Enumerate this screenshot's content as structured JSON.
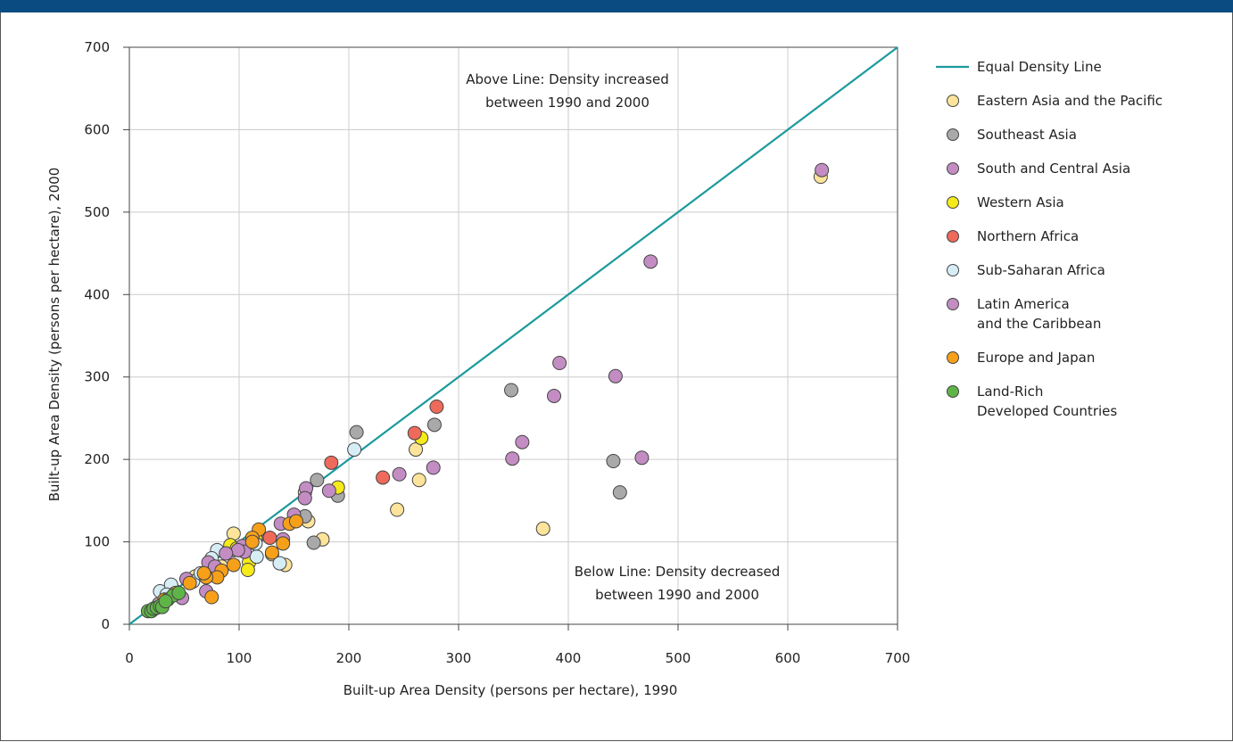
{
  "chart_data": {
    "type": "scatter",
    "xlabel": "Built-up Area Density (persons per hectare), 1990",
    "ylabel": "Built-up Area Density (persons per hectare), 2000",
    "xlim": [
      0,
      700
    ],
    "ylim": [
      0,
      700
    ],
    "x_ticks": [
      "0",
      "100",
      "200",
      "300",
      "400",
      "500",
      "600",
      "700"
    ],
    "y_ticks": [
      "0",
      "100",
      "200",
      "300",
      "400",
      "500",
      "600",
      "700"
    ],
    "grid": true,
    "legend_position": "right",
    "annotations": {
      "above": [
        "Above Line: Density increased",
        "between 1990 and 2000"
      ],
      "below": [
        "Below Line: Density decreased",
        "between 1990 and 2000"
      ]
    },
    "reference_line": {
      "name": "Equal Density Line",
      "color": "#1b9a9c",
      "x": [
        0,
        700
      ],
      "y": [
        0,
        700
      ]
    },
    "legend": [
      {
        "label": "Equal Density Line",
        "kind": "line",
        "color": "#1b9a9c"
      },
      {
        "label": [
          "Eastern Asia and the Pacific"
        ],
        "kind": "point",
        "color": "#fde49a"
      },
      {
        "label": [
          "Southeast Asia"
        ],
        "kind": "point",
        "color": "#a9a9a9"
      },
      {
        "label": [
          "South and Central Asia"
        ],
        "kind": "point",
        "color": "#c38dc3"
      },
      {
        "label": [
          "Western Asia"
        ],
        "kind": "point",
        "color": "#f5ea1a"
      },
      {
        "label": [
          "Northern Africa"
        ],
        "kind": "point",
        "color": "#ee6a5a"
      },
      {
        "label": [
          "Sub-Saharan Africa"
        ],
        "kind": "point",
        "color": "#d6edf6"
      },
      {
        "label": [
          "Latin America",
          "and the Caribbean"
        ],
        "kind": "point",
        "color": "#c38dc3"
      },
      {
        "label": [
          "Europe and Japan"
        ],
        "kind": "point",
        "color": "#f6a01a"
      },
      {
        "label": [
          "Land-Rich",
          "Developed Countries"
        ],
        "kind": "point",
        "color": "#5fb447"
      }
    ],
    "series": [
      {
        "name": "Eastern Asia and the Pacific",
        "color": "#fde49a",
        "points": [
          [
            95,
            110
          ],
          [
            163,
            125
          ],
          [
            176,
            103
          ],
          [
            142,
            72
          ],
          [
            244,
            139
          ],
          [
            264,
            175
          ],
          [
            261,
            212
          ],
          [
            377,
            116
          ],
          [
            630,
            543
          ],
          [
            130,
            85
          ],
          [
            160,
            160
          ],
          [
            84,
            70
          ],
          [
            60,
            58
          ],
          [
            42,
            40
          ]
        ]
      },
      {
        "name": "Southeast Asia",
        "color": "#a9a9a9",
        "points": [
          [
            207,
            233
          ],
          [
            278,
            242
          ],
          [
            190,
            156
          ],
          [
            171,
            175
          ],
          [
            168,
            99
          ],
          [
            348,
            284
          ],
          [
            441,
            198
          ],
          [
            447,
            160
          ],
          [
            160,
            131
          ],
          [
            95,
            90
          ],
          [
            22,
            18
          ],
          [
            27,
            25
          ]
        ]
      },
      {
        "name": "South and Central Asia",
        "color": "#c38dc3",
        "points": [
          [
            631,
            551
          ],
          [
            475,
            440
          ],
          [
            392,
            317
          ],
          [
            443,
            301
          ],
          [
            387,
            277
          ],
          [
            358,
            221
          ],
          [
            349,
            201
          ],
          [
            277,
            190
          ],
          [
            246,
            182
          ],
          [
            161,
            165
          ],
          [
            150,
            133
          ],
          [
            140,
            103
          ],
          [
            118,
            108
          ]
        ]
      },
      {
        "name": "Western Asia",
        "color": "#f5ea1a",
        "points": [
          [
            266,
            226
          ],
          [
            190,
            166
          ],
          [
            109,
            75
          ],
          [
            108,
            66
          ],
          [
            92,
            96
          ],
          [
            98,
            92
          ],
          [
            115,
            104
          ]
        ]
      },
      {
        "name": "Northern Africa",
        "color": "#ee6a5a",
        "points": [
          [
            280,
            264
          ],
          [
            260,
            232
          ],
          [
            184,
            196
          ],
          [
            231,
            178
          ],
          [
            128,
            105
          ]
        ]
      },
      {
        "name": "Sub-Saharan Africa",
        "color": "#d6edf6",
        "points": [
          [
            205,
            212
          ],
          [
            137,
            74
          ],
          [
            116,
            82
          ],
          [
            80,
            90
          ],
          [
            75,
            80
          ],
          [
            102,
            93
          ],
          [
            28,
            40
          ],
          [
            38,
            48
          ],
          [
            58,
            52
          ],
          [
            65,
            62
          ],
          [
            34,
            36
          ],
          [
            115,
            98
          ]
        ]
      },
      {
        "name": "Latin America and the Caribbean",
        "color": "#c38dc3",
        "points": [
          [
            467,
            202
          ],
          [
            182,
            162
          ],
          [
            160,
            153
          ],
          [
            138,
            122
          ],
          [
            103,
            95
          ],
          [
            105,
            88
          ],
          [
            99,
            90
          ],
          [
            72,
            75
          ],
          [
            70,
            40
          ],
          [
            48,
            32
          ],
          [
            52,
            55
          ],
          [
            78,
            70
          ],
          [
            88,
            86
          ]
        ]
      },
      {
        "name": "Europe and Japan",
        "color": "#f6a01a",
        "points": [
          [
            146,
            122
          ],
          [
            152,
            125
          ],
          [
            140,
            98
          ],
          [
            130,
            87
          ],
          [
            118,
            115
          ],
          [
            112,
            105
          ],
          [
            95,
            72
          ],
          [
            84,
            65
          ],
          [
            80,
            57
          ],
          [
            75,
            33
          ],
          [
            70,
            57
          ],
          [
            68,
            62
          ],
          [
            55,
            50
          ],
          [
            42,
            38
          ],
          [
            32,
            30
          ],
          [
            112,
            100
          ]
        ]
      },
      {
        "name": "Land-Rich Developed Countries",
        "color": "#5fb447",
        "points": [
          [
            17,
            16
          ],
          [
            20,
            16
          ],
          [
            22,
            19
          ],
          [
            25,
            20
          ],
          [
            28,
            22
          ],
          [
            30,
            21
          ],
          [
            35,
            30
          ],
          [
            40,
            35
          ],
          [
            45,
            38
          ],
          [
            33,
            28
          ]
        ]
      }
    ]
  }
}
